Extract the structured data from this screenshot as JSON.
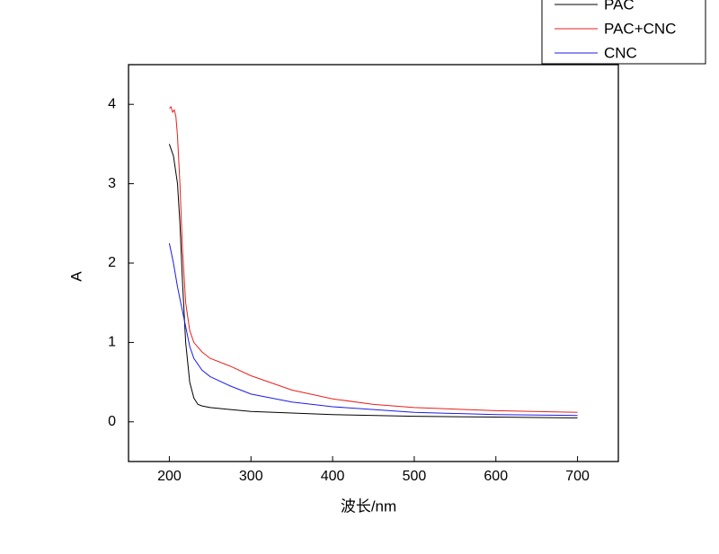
{
  "chart_data": {
    "type": "line",
    "x_label": "波长/nm",
    "y_label": "A",
    "xlim": [
      150,
      750
    ],
    "ylim": [
      -0.5,
      4.5
    ],
    "xticks": [
      200,
      300,
      400,
      500,
      600,
      700
    ],
    "yticks": [
      0,
      1,
      2,
      3,
      4
    ],
    "grid": false,
    "legend": "top-right",
    "series": [
      {
        "name": "PAC",
        "color": "#000000",
        "x": [
          200,
          205,
          210,
          213,
          216,
          220,
          225,
          230,
          235,
          240,
          250,
          300,
          400,
          500,
          600,
          700
        ],
        "values": [
          3.5,
          3.35,
          3.0,
          2.5,
          1.8,
          1.0,
          0.5,
          0.3,
          0.22,
          0.2,
          0.18,
          0.13,
          0.09,
          0.07,
          0.06,
          0.05
        ]
      },
      {
        "name": "PAC+CNC",
        "color": "#e8201c",
        "x": [
          200,
          202,
          204,
          206,
          208,
          210,
          213,
          216,
          220,
          225,
          230,
          240,
          250,
          275,
          300,
          350,
          400,
          450,
          500,
          600,
          700
        ],
        "values": [
          3.95,
          3.97,
          3.9,
          3.93,
          3.85,
          3.6,
          3.0,
          2.2,
          1.5,
          1.15,
          1.0,
          0.88,
          0.8,
          0.7,
          0.58,
          0.4,
          0.29,
          0.22,
          0.18,
          0.14,
          0.12
        ]
      },
      {
        "name": "CNC",
        "color": "#1c1ce8",
        "x": [
          200,
          205,
          210,
          215,
          220,
          225,
          230,
          240,
          250,
          275,
          300,
          350,
          400,
          500,
          600,
          700
        ],
        "values": [
          2.25,
          2.0,
          1.7,
          1.45,
          1.2,
          0.95,
          0.8,
          0.65,
          0.57,
          0.45,
          0.35,
          0.25,
          0.19,
          0.12,
          0.09,
          0.08
        ]
      }
    ]
  }
}
